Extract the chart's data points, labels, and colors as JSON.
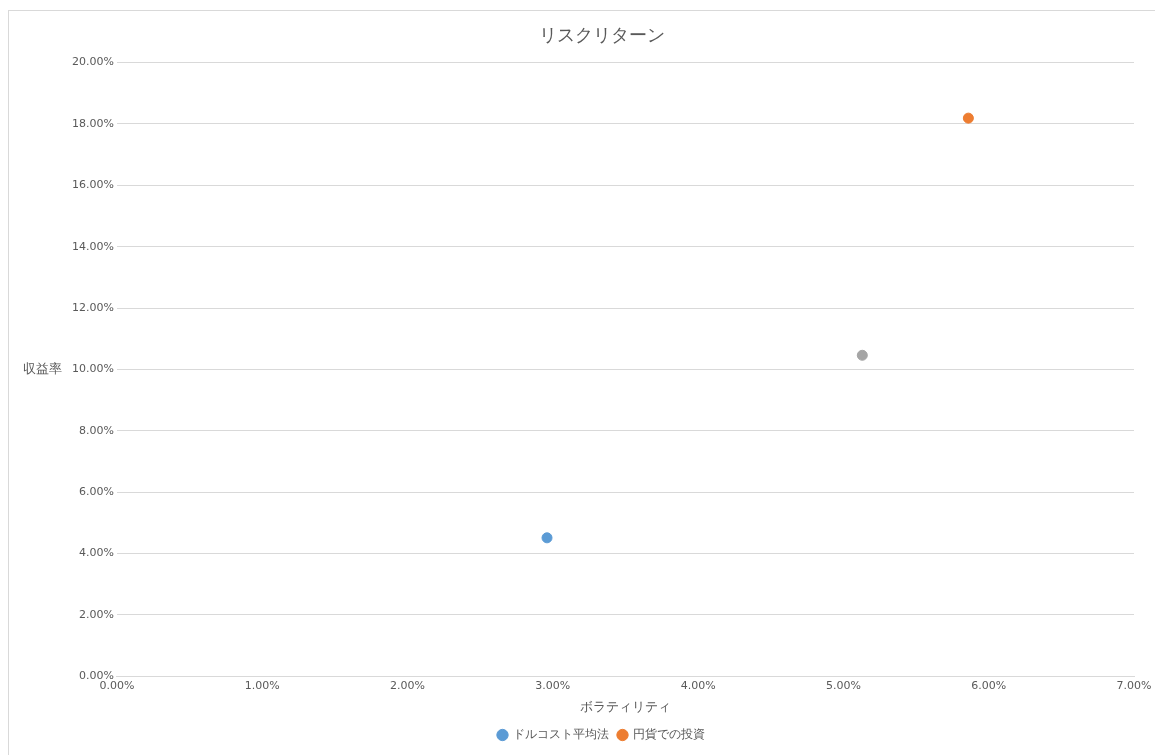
{
  "chart_data": {
    "type": "scatter",
    "title": "リスクリターン",
    "xlabel": "ボラティリティ",
    "ylabel": "収益率",
    "series": [
      {
        "name": "ドルコスト平均法",
        "color": "#5b9bd5",
        "x": [
          2.96
        ],
        "values": [
          4.51
        ]
      },
      {
        "name": "円貨での投資",
        "color": "#ed7d31",
        "x": [
          5.86
        ],
        "values": [
          18.19
        ]
      },
      {
        "color": "#a5a5a5",
        "x": [
          5.13
        ],
        "values": [
          10.46
        ]
      }
    ],
    "xlim": [
      0,
      7
    ],
    "xticks": [
      {
        "value": 0,
        "label": "0.00%"
      },
      {
        "value": 1,
        "label": "1.00%"
      },
      {
        "value": 2,
        "label": "2.00%"
      },
      {
        "value": 3,
        "label": "3.00%"
      },
      {
        "value": 4,
        "label": "4.00%"
      },
      {
        "value": 5,
        "label": "5.00%"
      },
      {
        "value": 6,
        "label": "6.00%"
      },
      {
        "value": 7,
        "label": "7.00%"
      }
    ],
    "ylim": [
      0,
      20
    ],
    "yticks": [
      {
        "value": 0,
        "label": "0.00%"
      },
      {
        "value": 2,
        "label": "2.00%"
      },
      {
        "value": 4,
        "label": "4.00%"
      },
      {
        "value": 6,
        "label": "6.00%"
      },
      {
        "value": 8,
        "label": "8.00%"
      },
      {
        "value": 10,
        "label": "10.00%"
      },
      {
        "value": 12,
        "label": "12.00%"
      },
      {
        "value": 14,
        "label": "14.00%"
      },
      {
        "value": 16,
        "label": "16.00%"
      },
      {
        "value": 18,
        "label": "18.00%"
      },
      {
        "value": 20,
        "label": "20.00%"
      }
    ],
    "grid": "y",
    "legend": "bottom",
    "marker": "circle"
  }
}
